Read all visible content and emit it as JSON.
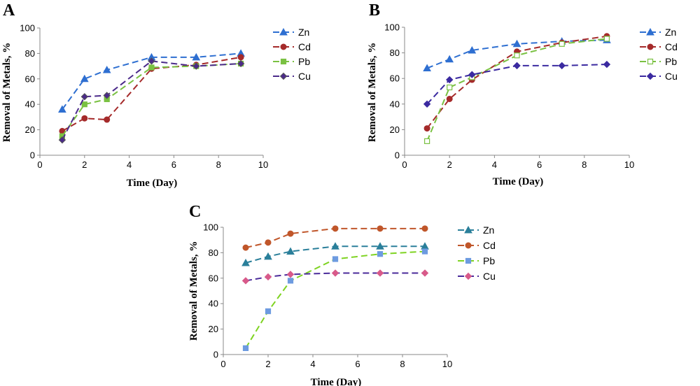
{
  "chart_data": [
    {
      "panel": "A",
      "type": "line",
      "xlabel": "Time (Day)",
      "ylabel": "Removal of Metals, %",
      "xlim": [
        0,
        10
      ],
      "ylim": [
        0,
        100
      ],
      "xticks": [
        0,
        2,
        4,
        6,
        8,
        10
      ],
      "yticks": [
        0,
        20,
        40,
        60,
        80,
        100
      ],
      "legend_position": "right",
      "series": [
        {
          "name": "Zn",
          "color": "#2e6fd1",
          "marker": "triangle",
          "open": false,
          "x": [
            1,
            2,
            3,
            5,
            7,
            9
          ],
          "y": [
            36,
            60,
            67,
            77,
            77,
            80
          ]
        },
        {
          "name": "Cd",
          "color": "#a52a2a",
          "marker": "circle",
          "open": false,
          "x": [
            1,
            2,
            3,
            5,
            7,
            9
          ],
          "y": [
            19,
            29,
            28,
            68,
            71,
            77
          ]
        },
        {
          "name": "Pb",
          "color": "#7ac142",
          "marker": "square",
          "open": false,
          "x": [
            1,
            2,
            3,
            5,
            7,
            9
          ],
          "y": [
            15,
            40,
            44,
            69,
            70,
            72
          ]
        },
        {
          "name": "Cu",
          "color": "#4b2a8a",
          "marker": "diamond",
          "open": false,
          "x": [
            1,
            2,
            3,
            5,
            7,
            9
          ],
          "y": [
            12,
            46,
            47,
            74,
            70,
            72
          ]
        }
      ]
    },
    {
      "panel": "B",
      "type": "line",
      "xlabel": "Time (Day)",
      "ylabel": "Removal of Metals, %",
      "xlim": [
        0,
        10
      ],
      "ylim": [
        0,
        100
      ],
      "xticks": [
        0,
        2,
        4,
        6,
        8,
        10
      ],
      "yticks": [
        0,
        20,
        40,
        60,
        80,
        100
      ],
      "legend_position": "right",
      "series": [
        {
          "name": "Zn",
          "color": "#2e6fd1",
          "marker": "triangle",
          "open": false,
          "x": [
            1,
            2,
            3,
            5,
            7,
            9
          ],
          "y": [
            68,
            75,
            82,
            87,
            89,
            90
          ]
        },
        {
          "name": "Cd",
          "color": "#a52a2a",
          "marker": "circle",
          "open": false,
          "x": [
            1,
            2,
            3,
            5,
            7,
            9
          ],
          "y": [
            21,
            44,
            59,
            81,
            88,
            93
          ]
        },
        {
          "name": "Pb",
          "color": "#7ac142",
          "marker": "square",
          "open": true,
          "x": [
            1,
            2,
            3,
            5,
            7,
            9
          ],
          "y": [
            11,
            53,
            61,
            78,
            87,
            91
          ]
        },
        {
          "name": "Cu",
          "color": "#3b2aa0",
          "marker": "diamond",
          "open": false,
          "x": [
            1,
            2,
            3,
            5,
            7,
            9
          ],
          "y": [
            40,
            59,
            63,
            70,
            70,
            71
          ]
        }
      ]
    },
    {
      "panel": "C",
      "type": "line",
      "xlabel": "Time (Day)",
      "ylabel": "Removal of Metals, %",
      "xlim": [
        0,
        10
      ],
      "ylim": [
        0,
        100
      ],
      "xticks": [
        0,
        2,
        4,
        6,
        8,
        10
      ],
      "yticks": [
        0,
        20,
        40,
        60,
        80,
        100
      ],
      "legend_position": "right",
      "series": [
        {
          "name": "Zn",
          "color": "#2a7f9a",
          "marker": "triangle",
          "open": false,
          "x": [
            1,
            2,
            3,
            5,
            7,
            9
          ],
          "y": [
            72,
            77,
            81,
            85,
            85,
            85
          ]
        },
        {
          "name": "Cd",
          "color": "#c0562a",
          "marker": "circle",
          "open": false,
          "x": [
            1,
            2,
            3,
            5,
            7,
            9
          ],
          "y": [
            84,
            88,
            95,
            99,
            99,
            99
          ]
        },
        {
          "name": "Pb",
          "color": "#7ed321",
          "marker": "square",
          "markerColor": "#6d9be0",
          "open": false,
          "x": [
            1,
            2,
            3,
            5,
            7,
            9
          ],
          "y": [
            5,
            34,
            58,
            75,
            79,
            81
          ]
        },
        {
          "name": "Cu",
          "color": "#4a2a9a",
          "marker": "diamond",
          "markerColor": "#d85a8a",
          "open": false,
          "x": [
            1,
            2,
            3,
            5,
            7,
            9
          ],
          "y": [
            58,
            61,
            63,
            64,
            64,
            64
          ]
        }
      ]
    }
  ]
}
